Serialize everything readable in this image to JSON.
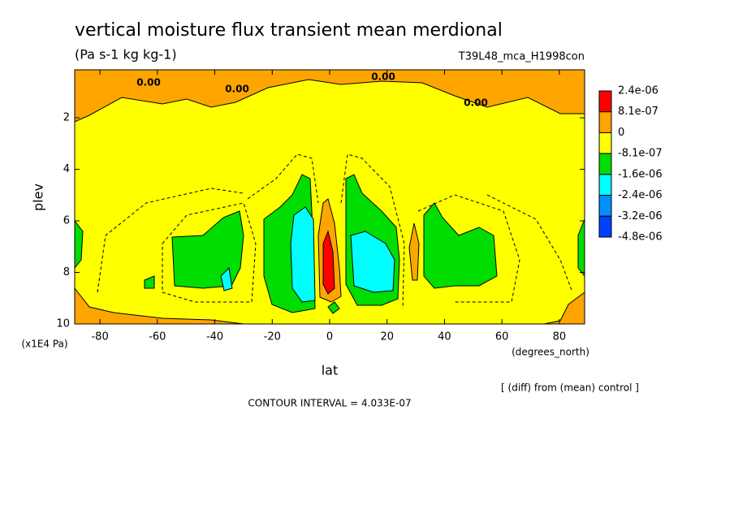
{
  "chart_data": {
    "type": "contour",
    "title": "vertical moisture flux transient mean merdional",
    "subtitle": "(Pa s-1 kg kg-1)",
    "run_label": "T39L48_mca_H1998con",
    "x_label": "lat",
    "x_units": "(degrees_north)",
    "y_label": "plev",
    "y_units": "(x1E4 Pa)",
    "xlim": [
      -88.8,
      88.8
    ],
    "xticks": [
      -80,
      -60,
      -40,
      -20,
      0,
      20,
      40,
      60,
      80
    ],
    "ylim": [
      10,
      0.14
    ],
    "yticks": [
      2,
      4,
      6,
      8,
      10
    ],
    "levels": [
      {
        "value": 2.4e-06,
        "label": "2.4e-06"
      },
      {
        "value": 8.1e-07,
        "label": "8.1e-07"
      },
      0,
      {
        "value": -8.1e-07,
        "label": "-8.1e-07"
      },
      {
        "value": -1.6e-06,
        "label": "-1.6e-06"
      },
      {
        "value": -2.4e-06,
        "label": "-2.4e-06"
      },
      {
        "value": -3.2e-06,
        "label": "-3.2e-06"
      },
      {
        "value": -4.8e-06,
        "label": "-4.8e-06"
      }
    ],
    "level_colors": [
      "#ff0000",
      "#ffa500",
      "#ffff00",
      "#00dd00",
      "#00ffff",
      "#0090ff",
      "#0040ff"
    ],
    "contour_labels": [
      "0.00",
      "0.00",
      "0.00",
      "0.00"
    ],
    "diff_note": "[ (diff) from (mean) control ]",
    "contour_interval": "CONTOUR INTERVAL = 4.033E-07"
  }
}
